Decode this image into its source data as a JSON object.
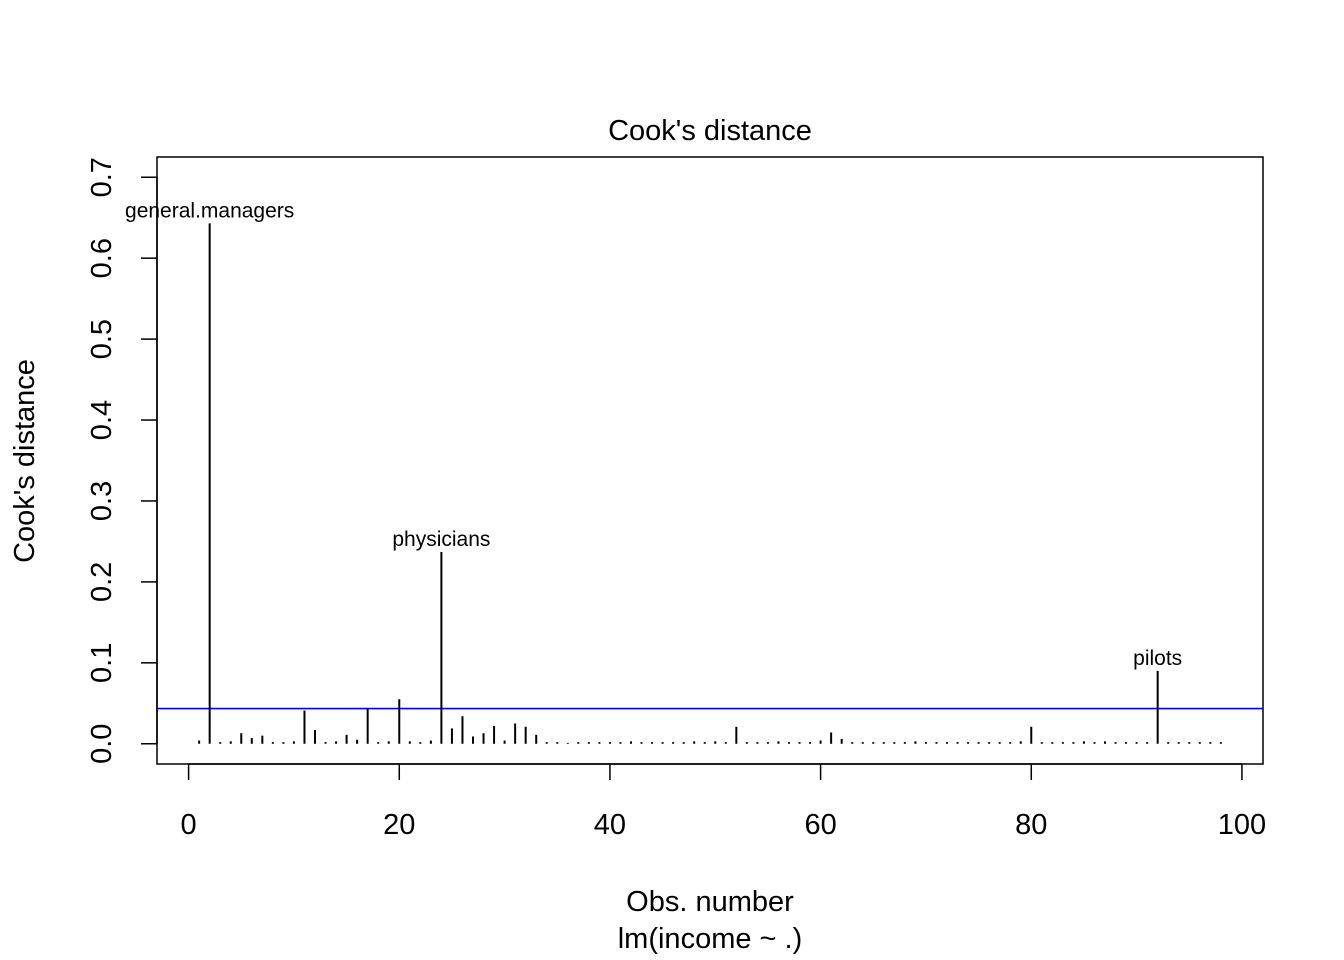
{
  "chart_data": {
    "type": "bar",
    "title": "Cook's distance",
    "xlabel": "Obs. number",
    "xlabel_sub": "lm(income ~ .)",
    "ylabel": "Cook's distance",
    "xlim": [
      -3,
      102
    ],
    "ylim": [
      -0.025,
      0.725
    ],
    "x_ticks": [
      0,
      20,
      40,
      60,
      80,
      100
    ],
    "x_tick_labels": [
      "0",
      "20",
      "40",
      "60",
      "80",
      "100"
    ],
    "y_ticks": [
      0.0,
      0.1,
      0.2,
      0.3,
      0.4,
      0.5,
      0.6,
      0.7
    ],
    "y_tick_labels": [
      "0.0",
      "0.1",
      "0.2",
      "0.3",
      "0.4",
      "0.5",
      "0.6",
      "0.7"
    ],
    "reference_line": {
      "y": 0.0435,
      "color": "#0000ff"
    },
    "grid": false,
    "series": [
      {
        "x": [
          1,
          2,
          3,
          4,
          5,
          6,
          7,
          8,
          9,
          10,
          11,
          12,
          13,
          14,
          15,
          16,
          17,
          18,
          19,
          20,
          21,
          22,
          23,
          24,
          25,
          26,
          27,
          28,
          29,
          30,
          31,
          32,
          33,
          34,
          35,
          36,
          37,
          38,
          39,
          40,
          41,
          42,
          43,
          44,
          45,
          46,
          47,
          48,
          49,
          50,
          51,
          52,
          53,
          54,
          55,
          56,
          57,
          58,
          59,
          60,
          61,
          62,
          63,
          64,
          65,
          66,
          67,
          68,
          69,
          70,
          71,
          72,
          73,
          74,
          75,
          76,
          77,
          78,
          79,
          80,
          81,
          82,
          83,
          84,
          85,
          86,
          87,
          88,
          89,
          90,
          91,
          92,
          93,
          94,
          95,
          96,
          97,
          98
        ],
        "values": [
          0.004,
          0.643,
          0.002,
          0.003,
          0.013,
          0.007,
          0.01,
          0.002,
          0.002,
          0.003,
          0.041,
          0.017,
          0.002,
          0.003,
          0.011,
          0.005,
          0.044,
          0.002,
          0.003,
          0.055,
          0.003,
          0.002,
          0.004,
          0.237,
          0.019,
          0.034,
          0.009,
          0.013,
          0.022,
          0.004,
          0.025,
          0.021,
          0.011,
          0.002,
          0.002,
          0.001,
          0.002,
          0.002,
          0.002,
          0.002,
          0.002,
          0.003,
          0.002,
          0.002,
          0.002,
          0.002,
          0.002,
          0.003,
          0.002,
          0.003,
          0.002,
          0.021,
          0.002,
          0.002,
          0.002,
          0.003,
          0.002,
          0.002,
          0.002,
          0.004,
          0.014,
          0.006,
          0.002,
          0.002,
          0.002,
          0.002,
          0.002,
          0.002,
          0.003,
          0.002,
          0.002,
          0.002,
          0.002,
          0.002,
          0.002,
          0.002,
          0.002,
          0.002,
          0.003,
          0.021,
          0.002,
          0.002,
          0.002,
          0.002,
          0.003,
          0.002,
          0.003,
          0.002,
          0.002,
          0.002,
          0.002,
          0.09,
          0.002,
          0.002,
          0.002,
          0.002,
          0.002,
          0.002
        ]
      }
    ],
    "annotations": [
      {
        "text": "general.managers",
        "x": 2,
        "y": 0.643
      },
      {
        "text": "physicians",
        "x": 24,
        "y": 0.237
      },
      {
        "text": "pilots",
        "x": 92,
        "y": 0.09
      }
    ]
  }
}
